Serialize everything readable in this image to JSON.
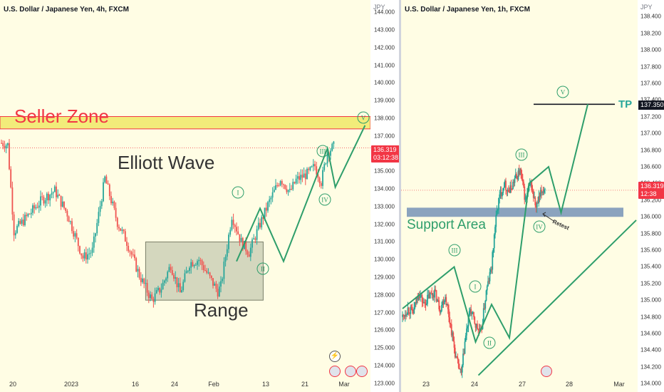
{
  "left_panel": {
    "title": "U.S. Dollar / Japanese Yen, 4h, FXCM",
    "currency": "JPY",
    "y_ticks": [
      "144.000",
      "143.000",
      "142.000",
      "141.000",
      "140.000",
      "139.000",
      "138.000",
      "137.000",
      "136.000",
      "135.000",
      "134.000",
      "133.000",
      "132.000",
      "131.000",
      "130.000",
      "129.000",
      "128.000",
      "127.000",
      "126.000",
      "125.000",
      "124.000",
      "123.000"
    ],
    "x_ticks": [
      "20",
      "2023",
      "16",
      "24",
      "Feb",
      "13",
      "21",
      "Mar"
    ],
    "last_price": "136.319",
    "countdown": "03:12:38",
    "seller_zone_label": "Seller Zone",
    "elliott_label": "Elliott Wave",
    "range_label": "Range",
    "wave_labels": [
      "I",
      "II",
      "III",
      "IV",
      "V"
    ]
  },
  "right_panel": {
    "title": "U.S. Dollar / Japanese Yen, 1h, FXCM",
    "currency": "JPY",
    "y_ticks": [
      "138.400",
      "138.200",
      "138.000",
      "137.800",
      "137.600",
      "137.400",
      "137.200",
      "137.000",
      "136.800",
      "136.600",
      "136.400",
      "136.200",
      "136.000",
      "135.800",
      "135.600",
      "135.400",
      "135.200",
      "135.000",
      "134.800",
      "134.600",
      "134.400",
      "134.200",
      "134.000"
    ],
    "x_ticks": [
      "23",
      "24",
      "27",
      "28",
      "Mar"
    ],
    "last_price": "136.319",
    "countdown": "12:38",
    "tp_label": "TP",
    "tp_price": "137.350",
    "support_label": "Support Area",
    "retest_label": "Retest",
    "wave_labels": [
      "I",
      "II",
      "III",
      "IV",
      "V"
    ]
  },
  "colors": {
    "up": "#26a69a",
    "down": "#ef5350",
    "wave": "#2e9e6b",
    "seller_zone": "#f2ec7a",
    "support": "#8ba3be",
    "range_box": "#c9cdb4",
    "label_red": "#f23645"
  },
  "chart_data": [
    {
      "type": "candlestick",
      "title": "U.S. Dollar / Japanese Yen, 4h, FXCM",
      "xlabel": "",
      "ylabel": "JPY",
      "ylim": [
        122.5,
        144.7
      ],
      "x": [
        "20",
        "2023",
        "16",
        "24",
        "Feb",
        "13",
        "21",
        "Mar"
      ],
      "path_close": [
        [
          0,
          136.6
        ],
        [
          4,
          136.5
        ],
        [
          8,
          131.6
        ],
        [
          18,
          132.6
        ],
        [
          26,
          133.4
        ],
        [
          34,
          133.9
        ],
        [
          42,
          132.6
        ],
        [
          52,
          130.1
        ],
        [
          58,
          130.5
        ],
        [
          66,
          134.6
        ],
        [
          74,
          132.1
        ],
        [
          80,
          131.0
        ],
        [
          88,
          129.1
        ],
        [
          96,
          127.7
        ],
        [
          102,
          128.4
        ],
        [
          108,
          129.7
        ],
        [
          114,
          128.1
        ],
        [
          120,
          129.8
        ],
        [
          126,
          130.0
        ],
        [
          132,
          129.1
        ],
        [
          138,
          128.2
        ],
        [
          140,
          128.5
        ],
        [
          147,
          132.5
        ],
        [
          153,
          131.0
        ],
        [
          158,
          130.4
        ],
        [
          164,
          131.8
        ],
        [
          170,
          133.1
        ],
        [
          178,
          134.6
        ],
        [
          184,
          133.8
        ],
        [
          188,
          134.5
        ],
        [
          196,
          134.9
        ],
        [
          200,
          135.3
        ],
        [
          204,
          134.4
        ],
        [
          208,
          136.1
        ],
        [
          212,
          136.4
        ]
      ],
      "series": [
        {
          "name": "waves",
          "points": [
            [
              "II",
              129.9
            ],
            [
              "I",
              132.9
            ],
            [
              "II",
              129.9
            ],
            [
              "III",
              136.3
            ],
            [
              "IV",
              134.1
            ],
            [
              "V",
              137.6
            ]
          ]
        }
      ],
      "annotations": [
        "Seller Zone",
        "Elliott Wave",
        "Range"
      ],
      "zones": [
        {
          "label": "Seller Zone",
          "from": 137.4,
          "to": 138.1
        },
        {
          "label": "Range",
          "from": 127.7,
          "to": 131.0
        }
      ],
      "last": 136.319,
      "wave_path": [
        [
          150,
          129.9
        ],
        [
          165,
          132.9
        ],
        [
          180,
          129.9
        ],
        [
          208,
          136.3
        ],
        [
          213,
          134.1
        ],
        [
          232,
          137.6
        ]
      ],
      "range_x": [
        92,
        167
      ]
    },
    {
      "type": "candlestick",
      "title": "U.S. Dollar / Japanese Yen, 1h, FXCM",
      "xlabel": "",
      "ylabel": "JPY",
      "ylim": [
        133.9,
        138.6
      ],
      "x": [
        "23",
        "24",
        "27",
        "28",
        "Mar"
      ],
      "path_close": [
        [
          0,
          134.8
        ],
        [
          6,
          134.9
        ],
        [
          12,
          134.85
        ],
        [
          18,
          135.1
        ],
        [
          24,
          134.95
        ],
        [
          30,
          135.05
        ],
        [
          36,
          135.1
        ],
        [
          42,
          134.9
        ],
        [
          48,
          135.05
        ],
        [
          54,
          134.7
        ],
        [
          60,
          134.3
        ],
        [
          66,
          134.1
        ],
        [
          70,
          134.5
        ],
        [
          76,
          134.9
        ],
        [
          82,
          134.7
        ],
        [
          88,
          134.6
        ],
        [
          94,
          135.1
        ],
        [
          100,
          135.4
        ],
        [
          104,
          135.9
        ],
        [
          108,
          136.2
        ],
        [
          114,
          136.4
        ],
        [
          120,
          136.3
        ],
        [
          126,
          136.45
        ],
        [
          132,
          136.55
        ],
        [
          138,
          136.2
        ],
        [
          144,
          136.4
        ],
        [
          150,
          136.1
        ],
        [
          156,
          136.3
        ],
        [
          160,
          136.35
        ]
      ],
      "wave_path": [
        [
          0,
          134.9
        ],
        [
          58,
          135.4
        ],
        [
          82,
          134.5
        ],
        [
          100,
          134.95
        ],
        [
          120,
          134.55
        ],
        [
          142,
          136.4
        ],
        [
          164,
          136.6
        ],
        [
          178,
          136.05
        ],
        [
          208,
          137.35
        ]
      ],
      "trend": [
        [
          82,
          134.1
        ],
        [
          312,
          135.96
        ]
      ],
      "tp": 137.35,
      "support_band": [
        136.0,
        136.11
      ],
      "last": 136.319
    }
  ]
}
